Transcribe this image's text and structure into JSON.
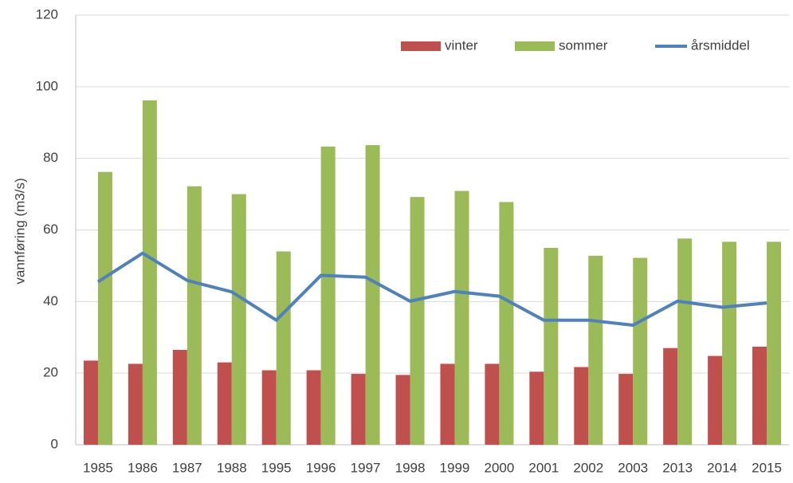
{
  "chart_data": {
    "type": "bar-line",
    "y_label": "vannføring (m3/s)",
    "categories": [
      "1985",
      "1986",
      "1987",
      "1988",
      "1995",
      "1996",
      "1997",
      "1998",
      "1999",
      "2000",
      "2001",
      "2002",
      "2003",
      "2013",
      "2014",
      "2015"
    ],
    "series": [
      {
        "name": "vinter",
        "type": "bar",
        "color": "#c0504d",
        "values": [
          23.5,
          22.6,
          26.5,
          23,
          20.8,
          20.8,
          19.8,
          19.5,
          22.6,
          22.6,
          20.4,
          21.7,
          19.8,
          27,
          24.8,
          27.4
        ]
      },
      {
        "name": "sommer",
        "type": "bar",
        "color": "#9bbb59",
        "values": [
          76.2,
          96.2,
          72.2,
          70,
          54,
          83.3,
          83.7,
          69.2,
          70.9,
          67.8,
          55,
          52.8,
          52.2,
          57.6,
          56.7,
          56.7
        ]
      },
      {
        "name": "årsmiddel",
        "type": "line",
        "color": "#4f81bd",
        "values": [
          45.5,
          53.5,
          45.9,
          42.7,
          34.8,
          47.3,
          46.8,
          40.1,
          42.8,
          41.5,
          34.8,
          34.8,
          33.4,
          40.1,
          38.4,
          39.6
        ]
      }
    ],
    "ylim": [
      0,
      120
    ],
    "yticks": [
      0,
      20,
      40,
      60,
      80,
      100,
      120
    ],
    "grid": true,
    "legend": "top-right"
  }
}
